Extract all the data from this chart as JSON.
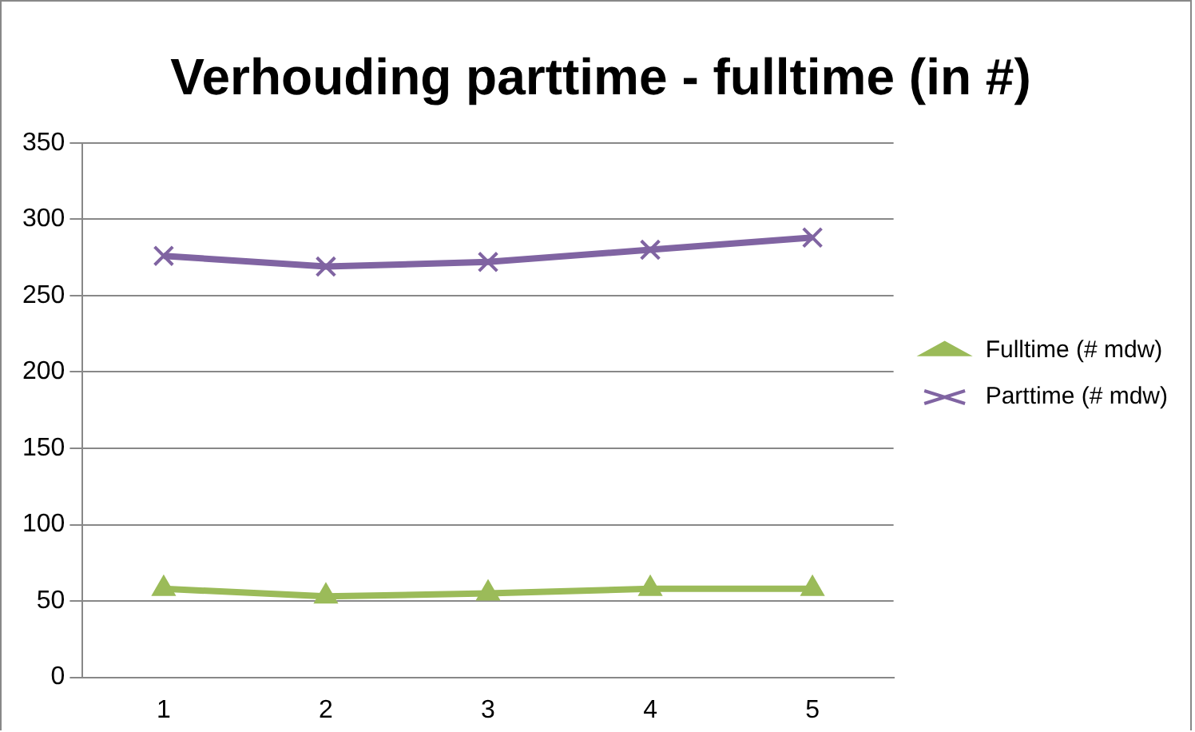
{
  "chart_data": {
    "type": "line",
    "title": "Verhouding parttime - fulltime (in #)",
    "categories": [
      "1",
      "2",
      "3",
      "4",
      "5"
    ],
    "series": [
      {
        "name": "Fulltime (# mdw)",
        "color": "#9bbb59",
        "marker": "triangle",
        "values": [
          58,
          53,
          55,
          58,
          58
        ]
      },
      {
        "name": "Parttime (# mdw)",
        "color": "#8064a2",
        "marker": "cross",
        "values": [
          276,
          269,
          272,
          280,
          288
        ]
      }
    ],
    "ylim": [
      0,
      350
    ],
    "yticks": [
      0,
      50,
      100,
      150,
      200,
      250,
      300,
      350
    ],
    "grid": "y",
    "legend": "right"
  }
}
